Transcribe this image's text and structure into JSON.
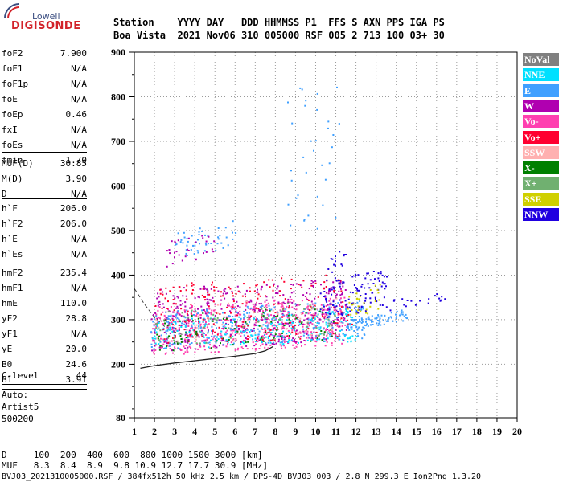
{
  "logo": {
    "brand": "Lowell",
    "product": "DIGISONDE"
  },
  "header": {
    "line1": "Station    YYYY DAY   DDD HHMMSS P1  FFS S AXN PPS IGA PS",
    "line2": "Boa Vista  2021 Nov06 310 005000 RSF 005 2 713 100 03+ 30"
  },
  "params": {
    "group1": [
      {
        "name": "foF2",
        "value": "7.900"
      },
      {
        "name": "foF1",
        "value": "N/A"
      },
      {
        "name": "foF1p",
        "value": "N/A"
      },
      {
        "name": "foE",
        "value": "N/A"
      },
      {
        "name": "foEp",
        "value": "0.46"
      },
      {
        "name": "fxI",
        "value": "N/A"
      },
      {
        "name": "foEs",
        "value": "N/A"
      },
      {
        "name": "fmin",
        "value": "1.70"
      }
    ],
    "group2": [
      {
        "name": "MUF(D)",
        "value": "30.85"
      },
      {
        "name": "M(D)",
        "value": "3.90"
      },
      {
        "name": "D",
        "value": "N/A"
      }
    ],
    "group3": [
      {
        "name": "h`F",
        "value": "206.0"
      },
      {
        "name": "h`F2",
        "value": "206.0"
      },
      {
        "name": "h`E",
        "value": "N/A"
      },
      {
        "name": "h`Es",
        "value": "N/A"
      }
    ],
    "group4": [
      {
        "name": "hmF2",
        "value": "235.4"
      },
      {
        "name": "hmF1",
        "value": "N/A"
      },
      {
        "name": "hmE",
        "value": "110.0"
      },
      {
        "name": "yF2",
        "value": "28.8"
      },
      {
        "name": "yF1",
        "value": "N/A"
      },
      {
        "name": "yE",
        "value": "20.0"
      },
      {
        "name": "B0",
        "value": "24.6"
      },
      {
        "name": "B1",
        "value": "3.91"
      }
    ],
    "clevel": {
      "name": "C-level",
      "value": "44"
    },
    "auto": {
      "line1": "Auto:",
      "line2": "Artist5",
      "line3": "500200"
    }
  },
  "legend": [
    {
      "label": "NoVal",
      "color": "#808080"
    },
    {
      "label": "NNE",
      "color": "#00e0ff"
    },
    {
      "label": "E",
      "color": "#40a0ff"
    },
    {
      "label": "W",
      "color": "#b000b0"
    },
    {
      "label": "Vo-",
      "color": "#ff40b0"
    },
    {
      "label": "Vo+",
      "color": "#ff0030"
    },
    {
      "label": "SSW",
      "color": "#ffb0b0"
    },
    {
      "label": "X-",
      "color": "#008000"
    },
    {
      "label": "X+",
      "color": "#70b070"
    },
    {
      "label": "SSE",
      "color": "#d0d000"
    },
    {
      "label": "NNW",
      "color": "#2000e0"
    }
  ],
  "footer": {
    "line1": "D     100  200  400  600  800 1000 1500 3000 [km]",
    "line2": "MUF   8.3  8.4  8.9  9.8 10.9 12.7 17.7 30.9 [MHz]",
    "line3": "BVJ03_2021310005000.RSF / 384fx512h 50 kHz 2.5 km / DPS-4D BVJ03 003 / 2.8 N 299.3 E Ion2Png 1.3.20"
  },
  "chart_data": {
    "type": "scatter",
    "xlim": [
      1,
      20
    ],
    "ylim": [
      80,
      900
    ],
    "xticks": [
      "1",
      "2",
      "3",
      "4",
      "5",
      "6",
      "7",
      "8",
      "9",
      "10",
      "11",
      "12",
      "13",
      "14",
      "15",
      "16",
      "17",
      "18",
      "19",
      "20"
    ],
    "yticks": [
      "900",
      "800",
      "700",
      "600",
      "500",
      "400",
      "300",
      "200",
      "80"
    ],
    "grid": true,
    "legend_position": "right",
    "trace_solid": [
      [
        1.3,
        191
      ],
      [
        2,
        197
      ],
      [
        3,
        203
      ],
      [
        4,
        208
      ],
      [
        5,
        213
      ],
      [
        6,
        218
      ],
      [
        7,
        224
      ],
      [
        7.5,
        230
      ],
      [
        7.9,
        240
      ]
    ],
    "trace_dashed": [
      [
        1,
        370
      ],
      [
        1.5,
        335
      ],
      [
        2,
        305
      ],
      [
        2.5,
        285
      ],
      [
        3,
        272
      ],
      [
        3.5,
        265
      ]
    ],
    "clusters": [
      {
        "color": "#ff40b0",
        "x": [
          1.8,
          11.5
        ],
        "y": [
          220,
          330
        ],
        "n": 500
      },
      {
        "color": "#b000b0",
        "x": [
          1.8,
          11.5
        ],
        "y": [
          230,
          370
        ],
        "n": 420
      },
      {
        "color": "#40a0ff",
        "x": [
          1.8,
          12.5
        ],
        "y": [
          235,
          320
        ],
        "n": 300
      },
      {
        "color": "#00e0ff",
        "x": [
          1.8,
          12.0
        ],
        "y": [
          228,
          300
        ],
        "n": 200
      },
      {
        "color": "#ff0030",
        "x": [
          2.0,
          11.8
        ],
        "y": [
          240,
          380
        ],
        "n": 220
      },
      {
        "color": "#2000e0",
        "x": [
          10.2,
          13.5
        ],
        "y": [
          300,
          390
        ],
        "n": 120
      },
      {
        "color": "#2000e0",
        "x": [
          13.5,
          16.5
        ],
        "y": [
          320,
          345
        ],
        "n": 20
      },
      {
        "color": "#40a0ff",
        "x": [
          11.5,
          14.5
        ],
        "y": [
          275,
          300
        ],
        "n": 80
      },
      {
        "color": "#d0d000",
        "x": [
          11.5,
          13.2
        ],
        "y": [
          300,
          360
        ],
        "n": 30
      },
      {
        "color": "#008000",
        "x": [
          2.0,
          11.0
        ],
        "y": [
          230,
          310
        ],
        "n": 90
      },
      {
        "color": "#70b070",
        "x": [
          2.0,
          11.0
        ],
        "y": [
          240,
          320
        ],
        "n": 80
      },
      {
        "color": "#ffb0b0",
        "x": [
          2.0,
          11.0
        ],
        "y": [
          240,
          330
        ],
        "n": 60
      },
      {
        "color": "#40a0ff",
        "x": [
          3.0,
          6.0
        ],
        "y": [
          440,
          500
        ],
        "n": 50
      },
      {
        "color": "#b000b0",
        "x": [
          2.5,
          5.0
        ],
        "y": [
          420,
          480
        ],
        "n": 30
      },
      {
        "color": "#40a0ff",
        "x": [
          8.5,
          11.3
        ],
        "y": [
          480,
          820
        ],
        "n": 35
      },
      {
        "color": "#2000e0",
        "x": [
          10.5,
          11.5
        ],
        "y": [
          400,
          440
        ],
        "n": 14
      }
    ]
  }
}
